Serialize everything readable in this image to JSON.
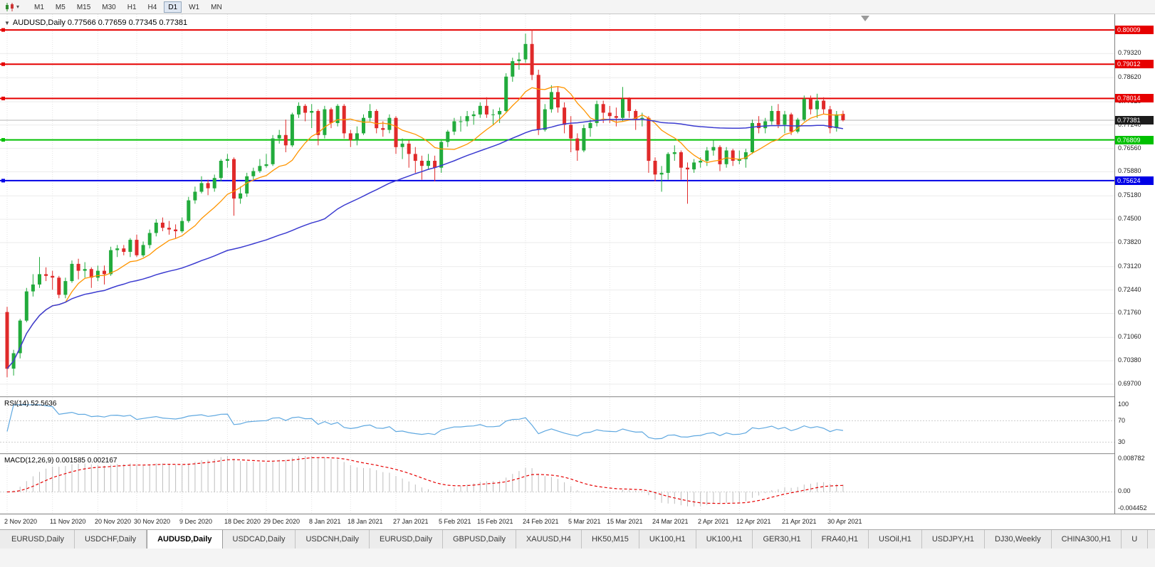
{
  "icons": {
    "collapse_arrow": "▼",
    "chart_type_caret": "▾"
  },
  "toolbar": {
    "periods": [
      "M1",
      "M5",
      "M15",
      "M30",
      "H1",
      "H4",
      "D1",
      "W1",
      "MN"
    ],
    "active_period": "D1"
  },
  "chart": {
    "header": "AUDUSD,Daily 0.77566 0.77659 0.77345 0.77381"
  },
  "rsi": {
    "label": "RSI(14) 52.5636"
  },
  "macd": {
    "label": "MACD(12,26,9) 0.001585 0.002167"
  },
  "bottom_tabs": {
    "active_index": 2,
    "tabs": [
      "EURUSD,Daily",
      "USDCHF,Daily",
      "AUDUSD,Daily",
      "USDCAD,Daily",
      "USDCNH,Daily",
      "EURUSD,Daily",
      "GBPUSD,Daily",
      "XAUUSD,H4",
      "HK50,M15",
      "UK100,H1",
      "UK100,H1",
      "GER30,H1",
      "FRA40,H1",
      "USOil,H1",
      "USDJPY,H1",
      "DJ30,Weekly",
      "CHINA300,H1",
      "U"
    ]
  },
  "chart_data": {
    "type": "candlestick",
    "symbol": "AUDUSD",
    "timeframe": "Daily",
    "ohlc_current": {
      "open": "0.77566",
      "high": "0.77659",
      "low": "0.77345",
      "close": "0.77381"
    },
    "price_axis": [
      "0.79320",
      "0.78620",
      "0.77920",
      "0.77240",
      "0.76560",
      "0.75880",
      "0.75180",
      "0.74500",
      "0.73820",
      "0.73120",
      "0.72440",
      "0.71760",
      "0.71060",
      "0.70380",
      "0.69700"
    ],
    "levels": [
      {
        "value": 0.80009,
        "label": "0.80009",
        "color": "#e60000"
      },
      {
        "value": 0.79012,
        "label": "0.79012",
        "color": "#e60000"
      },
      {
        "value": 0.78014,
        "label": "0.78014",
        "color": "#e60000"
      },
      {
        "value": 0.76809,
        "label": "0.76809",
        "color": "#00c000"
      },
      {
        "value": 0.75624,
        "label": "0.75624",
        "color": "#0000e6"
      }
    ],
    "current_price": {
      "value": 0.77381,
      "label": "0.77381"
    },
    "moving_averages": [
      {
        "period": 10,
        "type": "fast",
        "color": "#ff9500"
      },
      {
        "period": 50,
        "type": "slow",
        "color": "#3b3bd0"
      }
    ],
    "rsi_period": 14,
    "rsi_axis": [
      {
        "label": "100",
        "value": 100
      },
      {
        "label": "70",
        "value": 70
      },
      {
        "label": "30",
        "value": 30
      }
    ],
    "macd_params": [
      12,
      26,
      9
    ],
    "macd_axis": [
      {
        "label": "0.008782",
        "value": 0.008782
      },
      {
        "label": "0.00",
        "value": 0
      },
      {
        "label": "-0.004452",
        "value": -0.004452
      }
    ],
    "colors": {
      "up": "#22ab3c",
      "down": "#e02a2a",
      "grid": "#ebebeb",
      "rsi_line": "#5fa8e0",
      "macd_hist": "#bdbdbd",
      "macd_signal": "#e60000",
      "current_badge": "#1c1c1c"
    },
    "date_labels": [
      {
        "label": "2 Nov 2020",
        "index": 0
      },
      {
        "label": "11 Nov 2020",
        "index": 7
      },
      {
        "label": "20 Nov 2020",
        "index": 14
      },
      {
        "label": "30 Nov 2020",
        "index": 20
      },
      {
        "label": "9 Dec 2020",
        "index": 27
      },
      {
        "label": "18 Dec 2020",
        "index": 34
      },
      {
        "label": "29 Dec 2020",
        "index": 40
      },
      {
        "label": "8 Jan 2021",
        "index": 47
      },
      {
        "label": "18 Jan 2021",
        "index": 53
      },
      {
        "label": "27 Jan 2021",
        "index": 60
      },
      {
        "label": "5 Feb 2021",
        "index": 67
      },
      {
        "label": "15 Feb 2021",
        "index": 73
      },
      {
        "label": "24 Feb 2021",
        "index": 80
      },
      {
        "label": "5 Mar 2021",
        "index": 87
      },
      {
        "label": "15 Mar 2021",
        "index": 93
      },
      {
        "label": "24 Mar 2021",
        "index": 100
      },
      {
        "label": "2 Apr 2021",
        "index": 107
      },
      {
        "label": "12 Apr 2021",
        "index": 113
      },
      {
        "label": "21 Apr 2021",
        "index": 120
      },
      {
        "label": "30 Apr 2021",
        "index": 127
      }
    ],
    "candles": [
      [
        0.718,
        0.7195,
        0.699,
        0.7015
      ],
      [
        0.7015,
        0.707,
        0.6995,
        0.706
      ],
      [
        0.706,
        0.716,
        0.7045,
        0.7155
      ],
      [
        0.7155,
        0.725,
        0.715,
        0.724
      ],
      [
        0.724,
        0.729,
        0.7225,
        0.726
      ],
      [
        0.726,
        0.734,
        0.725,
        0.729
      ],
      [
        0.729,
        0.731,
        0.727,
        0.7285
      ],
      [
        0.7285,
        0.73,
        0.7245,
        0.728
      ],
      [
        0.728,
        0.7285,
        0.722,
        0.723
      ],
      [
        0.723,
        0.728,
        0.722,
        0.727
      ],
      [
        0.727,
        0.733,
        0.7265,
        0.732
      ],
      [
        0.732,
        0.7335,
        0.7275,
        0.73
      ],
      [
        0.73,
        0.7325,
        0.728,
        0.7305
      ],
      [
        0.7305,
        0.731,
        0.725,
        0.728
      ],
      [
        0.728,
        0.7315,
        0.727,
        0.73
      ],
      [
        0.73,
        0.7315,
        0.726,
        0.729
      ],
      [
        0.729,
        0.737,
        0.7285,
        0.736
      ],
      [
        0.736,
        0.7375,
        0.734,
        0.7365
      ],
      [
        0.7365,
        0.7375,
        0.7345,
        0.7355
      ],
      [
        0.7355,
        0.7395,
        0.734,
        0.739
      ],
      [
        0.739,
        0.7405,
        0.734,
        0.7345
      ],
      [
        0.7345,
        0.7385,
        0.734,
        0.7375
      ],
      [
        0.7375,
        0.742,
        0.7365,
        0.741
      ],
      [
        0.741,
        0.745,
        0.74,
        0.744
      ],
      [
        0.744,
        0.7455,
        0.7415,
        0.7425
      ],
      [
        0.7425,
        0.7445,
        0.7405,
        0.742
      ],
      [
        0.742,
        0.7435,
        0.7395,
        0.7415
      ],
      [
        0.7415,
        0.7455,
        0.741,
        0.7445
      ],
      [
        0.7445,
        0.7515,
        0.744,
        0.7505
      ],
      [
        0.7505,
        0.7545,
        0.7495,
        0.753
      ],
      [
        0.753,
        0.7575,
        0.7525,
        0.7555
      ],
      [
        0.7555,
        0.7565,
        0.752,
        0.754
      ],
      [
        0.754,
        0.758,
        0.753,
        0.757
      ],
      [
        0.757,
        0.7625,
        0.756,
        0.762
      ],
      [
        0.762,
        0.764,
        0.76,
        0.7625
      ],
      [
        0.7625,
        0.763,
        0.746,
        0.751
      ],
      [
        0.751,
        0.7545,
        0.7495,
        0.7525
      ],
      [
        0.7525,
        0.7585,
        0.7515,
        0.7575
      ],
      [
        0.7575,
        0.76,
        0.7565,
        0.759
      ],
      [
        0.759,
        0.7625,
        0.7585,
        0.7605
      ],
      [
        0.7605,
        0.764,
        0.76,
        0.761
      ],
      [
        0.761,
        0.7695,
        0.7605,
        0.7685
      ],
      [
        0.7685,
        0.771,
        0.767,
        0.7695
      ],
      [
        0.7695,
        0.774,
        0.7645,
        0.7665
      ],
      [
        0.7665,
        0.776,
        0.766,
        0.7755
      ],
      [
        0.7755,
        0.779,
        0.7745,
        0.778
      ],
      [
        0.778,
        0.7785,
        0.7735,
        0.776
      ],
      [
        0.776,
        0.7785,
        0.7715,
        0.7765
      ],
      [
        0.7765,
        0.777,
        0.7665,
        0.7695
      ],
      [
        0.7695,
        0.778,
        0.7685,
        0.777
      ],
      [
        0.777,
        0.7775,
        0.7715,
        0.773
      ],
      [
        0.773,
        0.7785,
        0.772,
        0.778
      ],
      [
        0.778,
        0.7785,
        0.7685,
        0.77
      ],
      [
        0.77,
        0.771,
        0.766,
        0.768
      ],
      [
        0.768,
        0.772,
        0.7665,
        0.77
      ],
      [
        0.77,
        0.7755,
        0.7695,
        0.7745
      ],
      [
        0.7745,
        0.7785,
        0.7735,
        0.7765
      ],
      [
        0.7765,
        0.777,
        0.77,
        0.7715
      ],
      [
        0.7715,
        0.7735,
        0.769,
        0.771
      ],
      [
        0.771,
        0.7755,
        0.77,
        0.7745
      ],
      [
        0.7745,
        0.775,
        0.764,
        0.766
      ],
      [
        0.766,
        0.7685,
        0.7625,
        0.767
      ],
      [
        0.767,
        0.768,
        0.76,
        0.764
      ],
      [
        0.764,
        0.766,
        0.7585,
        0.762
      ],
      [
        0.762,
        0.7635,
        0.7565,
        0.7605
      ],
      [
        0.7605,
        0.764,
        0.7595,
        0.762
      ],
      [
        0.762,
        0.7635,
        0.756,
        0.76
      ],
      [
        0.76,
        0.768,
        0.7585,
        0.7675
      ],
      [
        0.7675,
        0.771,
        0.766,
        0.7705
      ],
      [
        0.7705,
        0.7745,
        0.7695,
        0.7735
      ],
      [
        0.7735,
        0.775,
        0.7705,
        0.7735
      ],
      [
        0.7735,
        0.7765,
        0.772,
        0.775
      ],
      [
        0.775,
        0.7765,
        0.7725,
        0.7755
      ],
      [
        0.7755,
        0.779,
        0.7745,
        0.778
      ],
      [
        0.778,
        0.7805,
        0.7745,
        0.7755
      ],
      [
        0.7755,
        0.777,
        0.7725,
        0.7755
      ],
      [
        0.7755,
        0.7775,
        0.773,
        0.7765
      ],
      [
        0.7765,
        0.7875,
        0.776,
        0.7865
      ],
      [
        0.7865,
        0.792,
        0.785,
        0.791
      ],
      [
        0.791,
        0.7935,
        0.7885,
        0.7915
      ],
      [
        0.7915,
        0.799,
        0.7905,
        0.796
      ],
      [
        0.796,
        0.8001,
        0.7855,
        0.787
      ],
      [
        0.787,
        0.7885,
        0.7695,
        0.771
      ],
      [
        0.771,
        0.7785,
        0.7705,
        0.777
      ],
      [
        0.777,
        0.784,
        0.776,
        0.782
      ],
      [
        0.782,
        0.7835,
        0.776,
        0.7775
      ],
      [
        0.7775,
        0.779,
        0.77,
        0.7725
      ],
      [
        0.7725,
        0.775,
        0.7645,
        0.7685
      ],
      [
        0.7685,
        0.77,
        0.762,
        0.765
      ],
      [
        0.765,
        0.7725,
        0.7645,
        0.7715
      ],
      [
        0.7715,
        0.774,
        0.769,
        0.773
      ],
      [
        0.773,
        0.7795,
        0.772,
        0.7785
      ],
      [
        0.7785,
        0.7795,
        0.773,
        0.776
      ],
      [
        0.776,
        0.778,
        0.773,
        0.775
      ],
      [
        0.775,
        0.7775,
        0.772,
        0.7745
      ],
      [
        0.7745,
        0.7835,
        0.7735,
        0.78
      ],
      [
        0.78,
        0.7805,
        0.7745,
        0.7765
      ],
      [
        0.7765,
        0.777,
        0.771,
        0.774
      ],
      [
        0.774,
        0.776,
        0.772,
        0.7745
      ],
      [
        0.7745,
        0.775,
        0.7585,
        0.762
      ],
      [
        0.762,
        0.763,
        0.756,
        0.758
      ],
      [
        0.758,
        0.7605,
        0.753,
        0.7585
      ],
      [
        0.7585,
        0.7645,
        0.7565,
        0.764
      ],
      [
        0.764,
        0.7665,
        0.762,
        0.7645
      ],
      [
        0.7645,
        0.765,
        0.7565,
        0.76
      ],
      [
        0.76,
        0.7615,
        0.7495,
        0.7595
      ],
      [
        0.7595,
        0.7625,
        0.7585,
        0.7615
      ],
      [
        0.7615,
        0.763,
        0.76,
        0.762
      ],
      [
        0.762,
        0.766,
        0.7605,
        0.765
      ],
      [
        0.765,
        0.768,
        0.7635,
        0.766
      ],
      [
        0.766,
        0.7665,
        0.759,
        0.761
      ],
      [
        0.761,
        0.766,
        0.76,
        0.765
      ],
      [
        0.765,
        0.7655,
        0.7605,
        0.762
      ],
      [
        0.762,
        0.765,
        0.761,
        0.7625
      ],
      [
        0.7625,
        0.7655,
        0.76,
        0.7645
      ],
      [
        0.7645,
        0.774,
        0.764,
        0.773
      ],
      [
        0.773,
        0.775,
        0.77,
        0.7715
      ],
      [
        0.7715,
        0.7745,
        0.77,
        0.7735
      ],
      [
        0.7735,
        0.778,
        0.7725,
        0.7765
      ],
      [
        0.7765,
        0.7785,
        0.7715,
        0.7725
      ],
      [
        0.7725,
        0.7765,
        0.77,
        0.7755
      ],
      [
        0.7755,
        0.776,
        0.7695,
        0.7705
      ],
      [
        0.7705,
        0.7745,
        0.77,
        0.774
      ],
      [
        0.774,
        0.781,
        0.7735,
        0.78
      ],
      [
        0.78,
        0.781,
        0.7755,
        0.777
      ],
      [
        0.777,
        0.7815,
        0.7745,
        0.7795
      ],
      [
        0.7795,
        0.7805,
        0.7755,
        0.777
      ],
      [
        0.777,
        0.778,
        0.77,
        0.7715
      ],
      [
        0.7715,
        0.7765,
        0.7705,
        0.7755
      ],
      [
        0.77566,
        0.77659,
        0.77345,
        0.77381
      ]
    ]
  }
}
